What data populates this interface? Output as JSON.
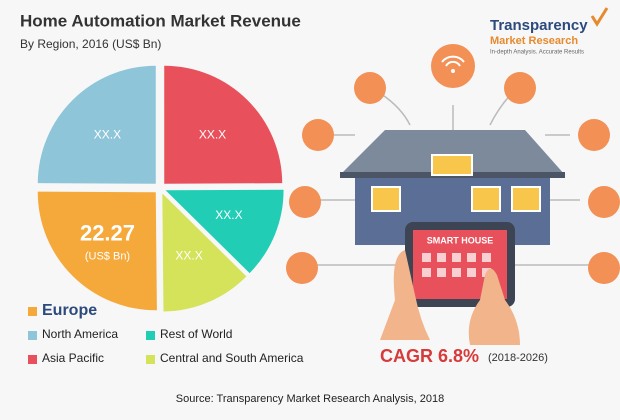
{
  "chart_data": {
    "type": "pie",
    "title": "Home Automation Market Revenue",
    "subtitle": "By Region, 2016 (US$ Bn)",
    "categories": [
      "Asia Pacific",
      "Rest of World",
      "Central and South America",
      "Europe",
      "North America"
    ],
    "values": [
      22,
      11,
      11,
      22.27,
      22
    ],
    "value_labels": [
      "XX.X",
      "XX.X",
      "XX.X",
      "22.27",
      "XX.X"
    ],
    "value_unit_label": "(US$ Bn)",
    "colors": [
      "#e8515c",
      "#22cdb6",
      "#d4e35a",
      "#f6a93b",
      "#8ec5d9"
    ],
    "legend_order": [
      3,
      4,
      1,
      0,
      2
    ],
    "annotation": {
      "cagr": "CAGR 6.8%",
      "period": "(2018-2026)"
    },
    "source": "Source: Transparency Market Research Analysis, 2018"
  },
  "logo": {
    "name": "Transparency",
    "name2": "Market Research",
    "tagline": "In-depth Analysis. Accurate Results"
  },
  "illustration": {
    "label": "SMART HOUSE"
  }
}
